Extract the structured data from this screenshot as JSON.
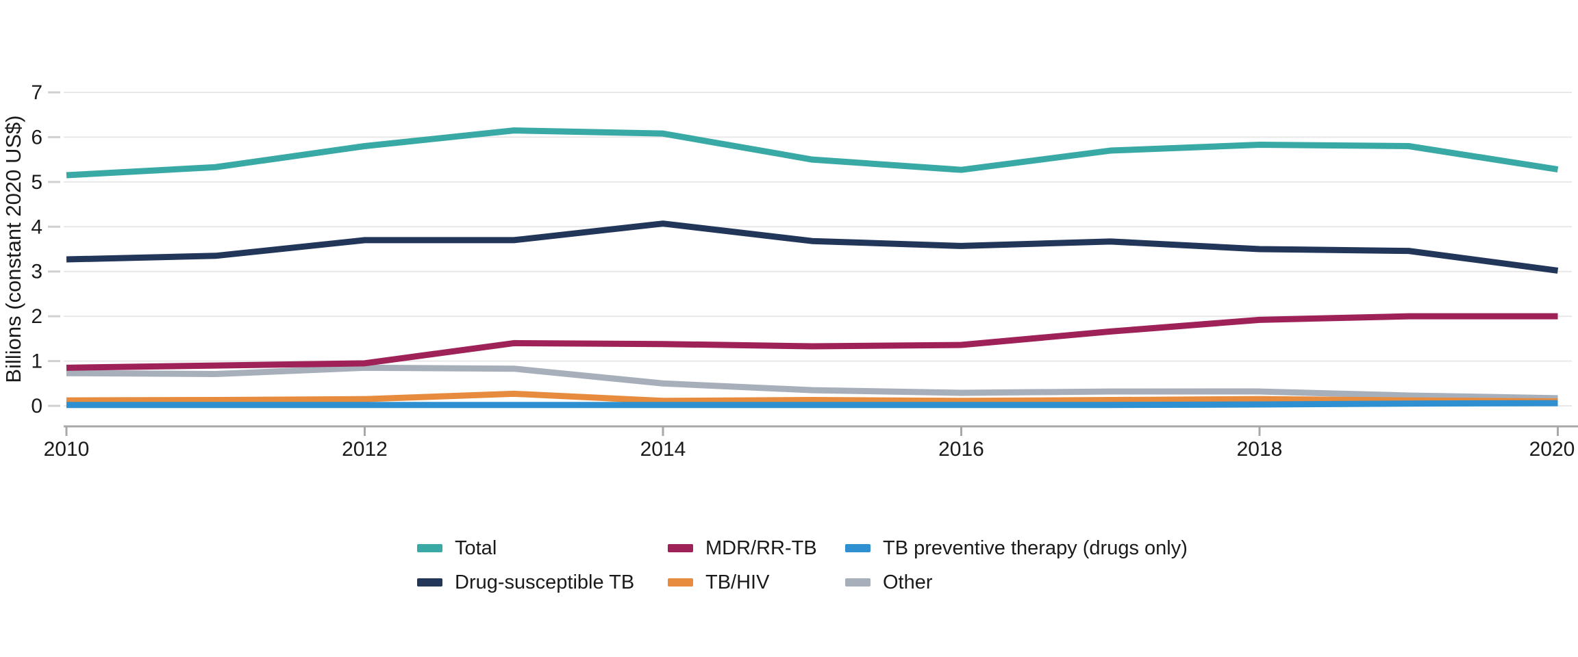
{
  "chart_data": {
    "type": "line",
    "title": "",
    "ylabel": "Billions (constant 2020 US$)",
    "xlabel": "",
    "ylim": [
      0,
      7
    ],
    "yticks": [
      0,
      1,
      2,
      3,
      4,
      5,
      6,
      7
    ],
    "xlim": [
      2010,
      2020
    ],
    "xticks": [
      2010,
      2012,
      2014,
      2016,
      2018,
      2020
    ],
    "x": [
      2010,
      2011,
      2012,
      2013,
      2014,
      2015,
      2016,
      2017,
      2018,
      2019,
      2020
    ],
    "grid": "horizontal",
    "legend_position": "bottom",
    "series": [
      {
        "name": "Other",
        "color": "#a7afbb",
        "values": [
          0.73,
          0.71,
          0.85,
          0.83,
          0.5,
          0.35,
          0.29,
          0.32,
          0.32,
          0.23,
          0.17
        ]
      },
      {
        "name": "TB/HIV",
        "color": "#e78c3e",
        "values": [
          0.12,
          0.13,
          0.15,
          0.27,
          0.11,
          0.13,
          0.11,
          0.13,
          0.15,
          0.12,
          0.1
        ]
      },
      {
        "name": "TB preventive therapy (drugs only)",
        "color": "#2e90d1",
        "values": [
          0.02,
          0.02,
          0.02,
          0.02,
          0.02,
          0.02,
          0.02,
          0.02,
          0.03,
          0.05,
          0.06
        ]
      },
      {
        "name": "MDR/RR-TB",
        "color": "#9e2158",
        "values": [
          0.85,
          0.9,
          0.95,
          1.4,
          1.38,
          1.33,
          1.36,
          1.66,
          1.92,
          2.0,
          2.0
        ]
      },
      {
        "name": "Drug-susceptible TB",
        "color": "#223659",
        "values": [
          3.27,
          3.35,
          3.7,
          3.7,
          4.07,
          3.68,
          3.57,
          3.67,
          3.5,
          3.46,
          3.02
        ]
      },
      {
        "name": "Total",
        "color": "#38a9a4",
        "values": [
          5.15,
          5.33,
          5.8,
          6.15,
          6.08,
          5.5,
          5.27,
          5.7,
          5.83,
          5.8,
          5.28
        ]
      }
    ],
    "legend_order": [
      "Total",
      "MDR/RR-TB",
      "TB preventive therapy (drugs only)",
      "Drug-susceptible TB",
      "TB/HIV",
      "Other"
    ],
    "colors": {
      "gridline": "#e8e8e8",
      "axis_line": "#a8a8a8",
      "y_tick": "#d0d0d0",
      "text": "#1a1a1a"
    }
  }
}
